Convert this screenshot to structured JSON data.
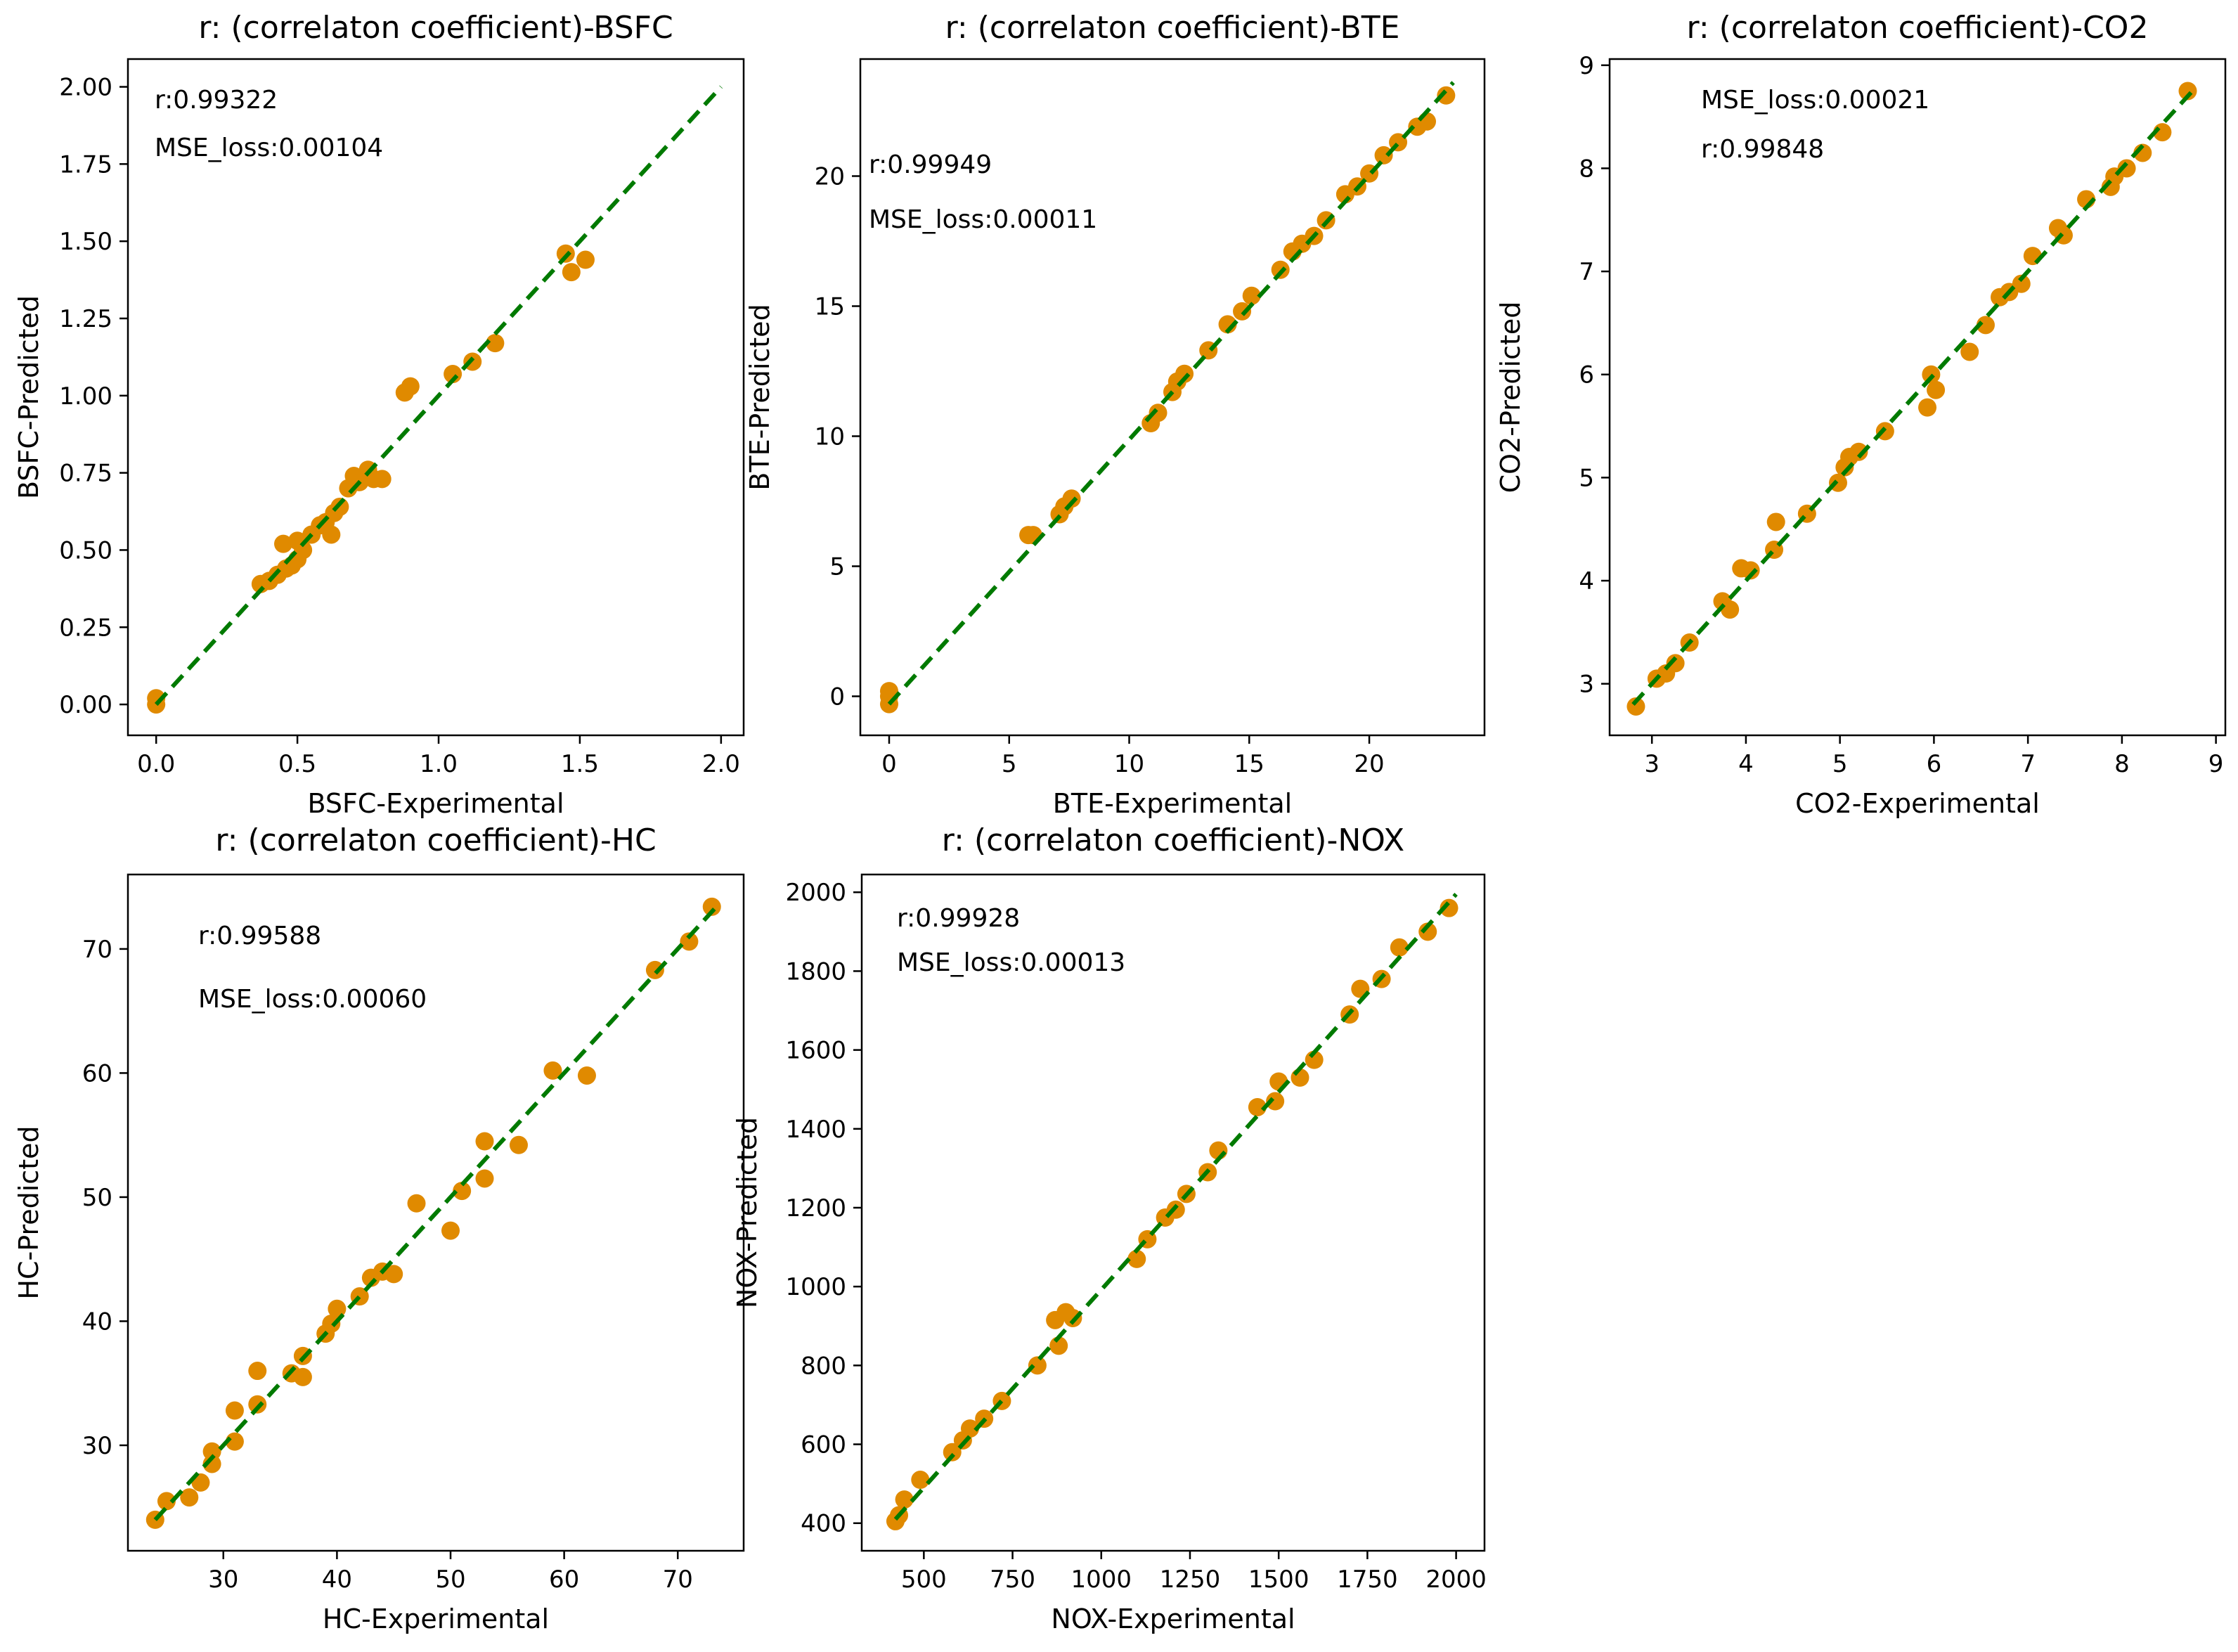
{
  "figure": {
    "background": "#ffffff"
  },
  "style": {
    "point_color": "#e08a00",
    "line_color": "#007a00"
  },
  "chart_data": [
    {
      "type": "scatter",
      "title": "r: (correlaton coefficient)-BSFC",
      "xlabel": "BSFC-Experimental",
      "ylabel": "BSFC-Predicted",
      "xlim": [
        -0.1,
        2.08
      ],
      "ylim": [
        -0.1,
        2.09
      ],
      "xticks": [
        0.0,
        0.5,
        1.0,
        1.5,
        2.0
      ],
      "xtick_labels": [
        "0.0",
        "0.5",
        "1.0",
        "1.5",
        "2.0"
      ],
      "yticks": [
        0.0,
        0.25,
        0.5,
        0.75,
        1.0,
        1.25,
        1.5,
        1.75,
        2.0
      ],
      "ytick_labels": [
        "0.00",
        "0.25",
        "0.50",
        "0.75",
        "1.00",
        "1.25",
        "1.50",
        "1.75",
        "2.00"
      ],
      "fit_line": [
        [
          0.0,
          0.0
        ],
        [
          2.0,
          2.0
        ]
      ],
      "annotations": [
        "r:0.99322",
        "MSE_loss:0.00104"
      ],
      "points": {
        "x": [
          0.0,
          0.0,
          0.37,
          0.4,
          0.43,
          0.45,
          0.46,
          0.48,
          0.5,
          0.5,
          0.52,
          0.55,
          0.58,
          0.6,
          0.62,
          0.63,
          0.65,
          0.68,
          0.7,
          0.72,
          0.75,
          0.77,
          0.8,
          0.88,
          0.9,
          1.05,
          1.12,
          1.2,
          1.45,
          1.47,
          1.52
        ],
        "y": [
          0.0,
          0.02,
          0.39,
          0.4,
          0.42,
          0.52,
          0.44,
          0.45,
          0.47,
          0.53,
          0.5,
          0.55,
          0.58,
          0.59,
          0.55,
          0.62,
          0.64,
          0.7,
          0.74,
          0.72,
          0.76,
          0.73,
          0.73,
          1.01,
          1.03,
          1.07,
          1.11,
          1.17,
          1.46,
          1.4,
          1.44
        ]
      }
    },
    {
      "type": "scatter",
      "title": "r: (correlaton coefficient)-BTE",
      "xlabel": "BTE-Experimental",
      "ylabel": "BTE-Predicted",
      "xlim": [
        -1.2,
        24.8
      ],
      "ylim": [
        -1.5,
        24.5
      ],
      "xticks": [
        0,
        5,
        10,
        15,
        20
      ],
      "xtick_labels": [
        "0",
        "5",
        "10",
        "15",
        "20"
      ],
      "yticks": [
        0,
        5,
        10,
        15,
        20
      ],
      "ytick_labels": [
        "0",
        "5",
        "10",
        "15",
        "20"
      ],
      "fit_line": [
        [
          0,
          -0.3
        ],
        [
          23.5,
          23.6
        ]
      ],
      "annotations": [
        "r:0.99949",
        "MSE_loss:0.00011"
      ],
      "points": {
        "x": [
          0.0,
          0.0,
          0.0,
          5.8,
          6.0,
          7.1,
          7.3,
          7.6,
          10.9,
          11.2,
          11.8,
          12.0,
          12.3,
          13.3,
          14.1,
          14.7,
          15.1,
          16.3,
          16.8,
          17.2,
          17.7,
          18.2,
          19.0,
          19.5,
          20.0,
          20.6,
          21.2,
          22.0,
          22.4,
          23.2
        ],
        "y": [
          -0.3,
          0.0,
          0.2,
          6.2,
          6.2,
          7.0,
          7.3,
          7.6,
          10.5,
          10.9,
          11.7,
          12.1,
          12.4,
          13.3,
          14.3,
          14.8,
          15.4,
          16.4,
          17.1,
          17.4,
          17.7,
          18.3,
          19.3,
          19.6,
          20.1,
          20.8,
          21.3,
          21.9,
          22.1,
          23.1
        ]
      }
    },
    {
      "type": "scatter",
      "title": "r: (correlaton coefficient)-CO2",
      "xlabel": "CO2-Experimental",
      "ylabel": "CO2-Predicted",
      "xlim": [
        2.55,
        9.1
      ],
      "ylim": [
        2.5,
        9.06
      ],
      "xticks": [
        3,
        4,
        5,
        6,
        7,
        8,
        9
      ],
      "xtick_labels": [
        "3",
        "4",
        "5",
        "6",
        "7",
        "8",
        "9"
      ],
      "yticks": [
        3,
        4,
        5,
        6,
        7,
        8,
        9
      ],
      "ytick_labels": [
        "3",
        "4",
        "5",
        "6",
        "7",
        "8",
        "9"
      ],
      "fit_line": [
        [
          2.8,
          2.8
        ],
        [
          8.75,
          8.75
        ]
      ],
      "annotations": [
        "MSE_loss:0.00021",
        "r:0.99848"
      ],
      "points": {
        "x": [
          2.83,
          3.05,
          3.15,
          3.25,
          3.4,
          3.75,
          3.83,
          3.95,
          4.05,
          4.3,
          4.32,
          4.65,
          4.98,
          5.05,
          5.1,
          5.2,
          5.48,
          5.93,
          5.97,
          6.02,
          6.38,
          6.55,
          6.7,
          6.8,
          6.93,
          7.05,
          7.32,
          7.38,
          7.62,
          7.88,
          7.92,
          8.05,
          8.22,
          8.43,
          8.7
        ],
        "y": [
          2.78,
          3.05,
          3.1,
          3.2,
          3.4,
          3.8,
          3.72,
          4.12,
          4.1,
          4.3,
          4.57,
          4.65,
          4.95,
          5.1,
          5.2,
          5.25,
          5.45,
          5.68,
          6.0,
          5.85,
          6.22,
          6.48,
          6.75,
          6.8,
          6.88,
          7.15,
          7.42,
          7.35,
          7.7,
          7.82,
          7.92,
          8.0,
          8.15,
          8.35,
          8.75
        ]
      }
    },
    {
      "type": "scatter",
      "title": "r: (correlaton coefficient)-HC",
      "xlabel": "HC-Experimental",
      "ylabel": "HC-Predicted",
      "xlim": [
        21.6,
        75.8
      ],
      "ylim": [
        21.5,
        76.0
      ],
      "xticks": [
        30,
        40,
        50,
        60,
        70
      ],
      "xtick_labels": [
        "30",
        "40",
        "50",
        "60",
        "70"
      ],
      "yticks": [
        30,
        40,
        50,
        60,
        70
      ],
      "ytick_labels": [
        "30",
        "40",
        "50",
        "60",
        "70"
      ],
      "fit_line": [
        [
          24,
          24
        ],
        [
          73.5,
          73.5
        ]
      ],
      "annotations": [
        "r:0.99588",
        "MSE_loss:0.00060"
      ],
      "points": {
        "x": [
          24.0,
          25.0,
          27.0,
          28.0,
          29.0,
          29.0,
          31.0,
          31.0,
          33.0,
          33.0,
          36.0,
          37.0,
          37.0,
          39.0,
          39.5,
          40.0,
          42.0,
          43.0,
          44.0,
          45.0,
          47.0,
          50.0,
          51.0,
          53.0,
          53.0,
          56.0,
          59.0,
          62.0,
          68.0,
          71.0,
          73.0
        ],
        "y": [
          24.0,
          25.5,
          25.8,
          27.0,
          28.5,
          29.5,
          30.3,
          32.8,
          33.3,
          36.0,
          35.8,
          37.2,
          35.5,
          39.0,
          39.8,
          41.0,
          42.0,
          43.5,
          44.0,
          43.8,
          49.5,
          47.3,
          50.5,
          54.5,
          51.5,
          54.2,
          60.2,
          59.8,
          68.3,
          70.6,
          73.4
        ]
      }
    },
    {
      "type": "scatter",
      "title": "r: (correlaton coefficient)-NOX",
      "xlabel": "NOX-Experimental",
      "ylabel": "NOX-Predicted",
      "xlim": [
        325,
        2080
      ],
      "ylim": [
        330,
        2045
      ],
      "xticks": [
        500,
        750,
        1000,
        1250,
        1500,
        1750,
        2000
      ],
      "xtick_labels": [
        "500",
        "750",
        "1000",
        "1250",
        "1500",
        "1750",
        "2000"
      ],
      "yticks": [
        400,
        600,
        800,
        1000,
        1200,
        1400,
        1600,
        1800,
        2000
      ],
      "ytick_labels": [
        "400",
        "600",
        "800",
        "1000",
        "1200",
        "1400",
        "1600",
        "1800",
        "2000"
      ],
      "fit_line": [
        [
          420,
          410
        ],
        [
          2000,
          1995
        ]
      ],
      "annotations": [
        "r:0.99928",
        "MSE_loss:0.00013"
      ],
      "points": {
        "x": [
          420,
          430,
          445,
          490,
          580,
          610,
          630,
          670,
          720,
          820,
          870,
          880,
          900,
          920,
          1100,
          1130,
          1180,
          1210,
          1240,
          1300,
          1330,
          1440,
          1490,
          1500,
          1560,
          1600,
          1700,
          1730,
          1790,
          1840,
          1920,
          1980
        ],
        "y": [
          405,
          420,
          460,
          510,
          580,
          610,
          640,
          665,
          710,
          800,
          915,
          850,
          935,
          920,
          1070,
          1120,
          1175,
          1195,
          1235,
          1290,
          1345,
          1455,
          1470,
          1520,
          1530,
          1575,
          1690,
          1755,
          1780,
          1860,
          1900,
          1960
        ]
      }
    }
  ]
}
